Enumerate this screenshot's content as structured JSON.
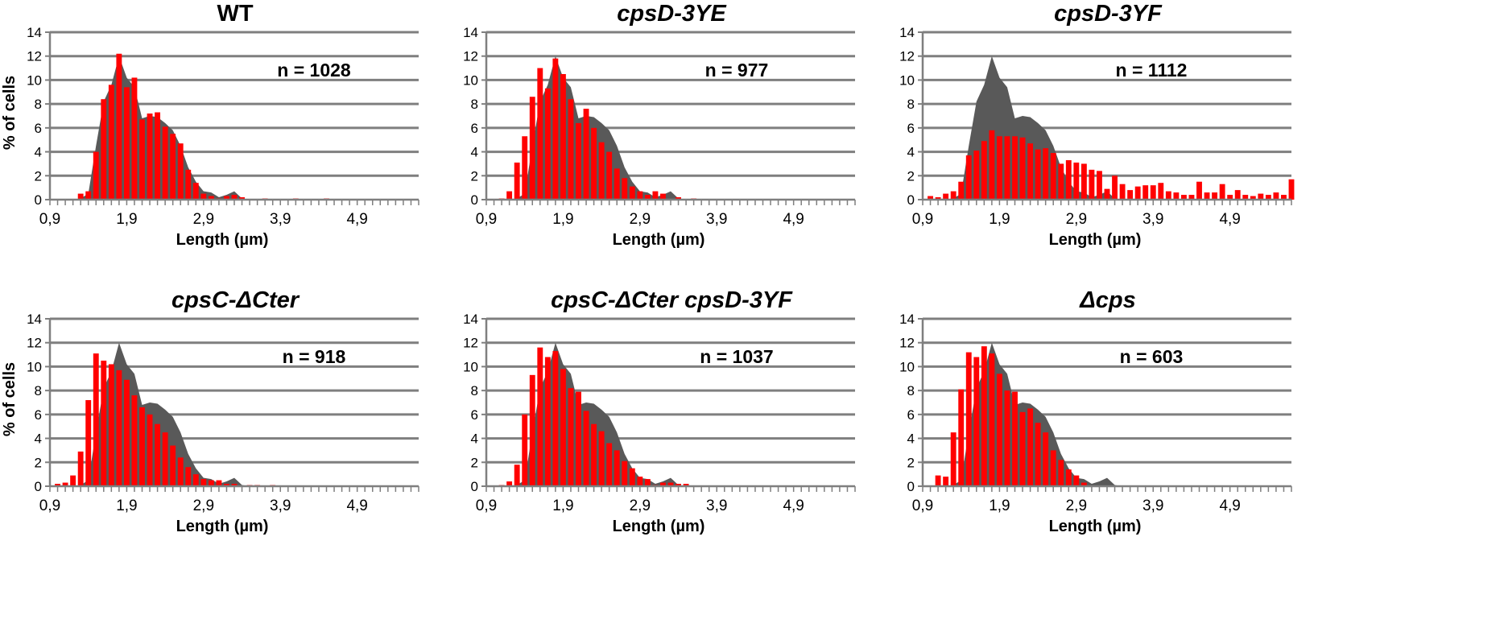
{
  "colors": {
    "wt_area": "#595959",
    "bars": "#ff0000",
    "grid": "#7f7f7f",
    "axis": "#7f7f7f"
  },
  "chart_data": [
    {
      "type": "bar",
      "title": "WT",
      "title_italic": false,
      "annotation": "n = 1028",
      "ylabel": "% of cells",
      "xlabel": "Length (µm)",
      "xlim": [
        0.9,
        5.7
      ],
      "ylim": [
        0,
        14
      ],
      "yticks": [
        "0",
        "2",
        "4",
        "6",
        "8",
        "10",
        "12",
        "14"
      ],
      "xticks": [
        {
          "value": 0.9,
          "label": "0,9"
        },
        {
          "value": 1.9,
          "label": "1,9"
        },
        {
          "value": 2.9,
          "label": "2,9"
        },
        {
          "value": 3.9,
          "label": "3,9"
        },
        {
          "value": 4.9,
          "label": "4,9"
        }
      ],
      "grid": true,
      "reference_area": {
        "x": [
          1.2,
          1.3,
          1.4,
          1.5,
          1.6,
          1.7,
          1.8,
          1.9,
          2.0,
          2.1,
          2.2,
          2.3,
          2.4,
          2.5,
          2.6,
          2.7,
          2.8,
          2.9,
          3.0,
          3.1,
          3.2,
          3.3,
          3.4,
          3.5
        ],
        "values": [
          0,
          0.1,
          0.5,
          4.5,
          8.2,
          9.6,
          12.0,
          10.2,
          9.4,
          6.8,
          7.0,
          6.9,
          6.4,
          5.8,
          4.5,
          2.7,
          1.5,
          0.7,
          0.6,
          0.2,
          0.4,
          0.7,
          0.1,
          0
        ]
      },
      "bars": {
        "x": [
          1.3,
          1.4,
          1.5,
          1.6,
          1.7,
          1.8,
          1.9,
          2.0,
          2.1,
          2.2,
          2.3,
          2.4,
          2.5,
          2.6,
          2.7,
          2.8,
          2.9,
          3.0,
          3.1,
          3.2,
          3.3,
          3.4,
          3.5,
          3.6,
          3.7,
          3.8,
          3.9,
          4.0,
          4.1,
          4.2,
          4.3,
          4.4,
          4.5
        ],
        "values": [
          0.5,
          0.7,
          4.0,
          8.4,
          9.6,
          12.2,
          9.4,
          10.2,
          6.7,
          7.2,
          7.3,
          6.1,
          5.5,
          4.7,
          2.5,
          1.4,
          0.5,
          0.3,
          0.1,
          0.3,
          0.4,
          0.2,
          0,
          0,
          0.1,
          0,
          0,
          0,
          0.1,
          0,
          0,
          0,
          0.1
        ]
      }
    },
    {
      "type": "bar",
      "title": "cpsD-3YE",
      "title_italic": true,
      "annotation": "n = 977",
      "ylabel": "",
      "xlabel": "Length (µm)",
      "xlim": [
        0.9,
        5.7
      ],
      "ylim": [
        0,
        14
      ],
      "yticks": [
        "0",
        "2",
        "4",
        "6",
        "8",
        "10",
        "12",
        "14"
      ],
      "xticks": [
        {
          "value": 0.9,
          "label": "0,9"
        },
        {
          "value": 1.9,
          "label": "1,9"
        },
        {
          "value": 2.9,
          "label": "2,9"
        },
        {
          "value": 3.9,
          "label": "3,9"
        },
        {
          "value": 4.9,
          "label": "4,9"
        }
      ],
      "grid": true,
      "reference_area": {
        "x": [
          1.2,
          1.3,
          1.4,
          1.5,
          1.6,
          1.7,
          1.8,
          1.9,
          2.0,
          2.1,
          2.2,
          2.3,
          2.4,
          2.5,
          2.6,
          2.7,
          2.8,
          2.9,
          3.0,
          3.1,
          3.2,
          3.3,
          3.4,
          3.5
        ],
        "values": [
          0,
          0.1,
          0.5,
          4.5,
          8.2,
          9.6,
          12.0,
          10.2,
          9.4,
          6.8,
          7.0,
          6.9,
          6.4,
          5.8,
          4.5,
          2.7,
          1.5,
          0.7,
          0.6,
          0.2,
          0.4,
          0.7,
          0.1,
          0
        ]
      },
      "bars": {
        "x": [
          1.1,
          1.2,
          1.3,
          1.4,
          1.5,
          1.6,
          1.7,
          1.8,
          1.9,
          2.0,
          2.1,
          2.2,
          2.3,
          2.4,
          2.5,
          2.6,
          2.7,
          2.8,
          2.9,
          3.0,
          3.1,
          3.2,
          3.3,
          3.4,
          3.5,
          3.6
        ],
        "values": [
          0.1,
          0.7,
          3.1,
          5.3,
          8.6,
          11.0,
          9.3,
          11.8,
          10.5,
          8.4,
          6.4,
          7.6,
          6.0,
          4.8,
          4.0,
          2.6,
          1.8,
          1.1,
          0.7,
          0.4,
          0.7,
          0.5,
          0,
          0.2,
          0,
          0.1
        ]
      }
    },
    {
      "type": "bar",
      "title": "cpsD-3YF",
      "title_italic": true,
      "annotation": "n = 1112",
      "ylabel": "",
      "xlabel": "Length (µm)",
      "xlim": [
        0.9,
        5.7
      ],
      "ylim": [
        0,
        14
      ],
      "yticks": [
        "0",
        "2",
        "4",
        "6",
        "8",
        "10",
        "12",
        "14"
      ],
      "xticks": [
        {
          "value": 0.9,
          "label": "0,9"
        },
        {
          "value": 1.9,
          "label": "1,9"
        },
        {
          "value": 2.9,
          "label": "2,9"
        },
        {
          "value": 3.9,
          "label": "3,9"
        },
        {
          "value": 4.9,
          "label": "4,9"
        }
      ],
      "grid": true,
      "reference_area": {
        "x": [
          1.2,
          1.3,
          1.4,
          1.5,
          1.6,
          1.7,
          1.8,
          1.9,
          2.0,
          2.1,
          2.2,
          2.3,
          2.4,
          2.5,
          2.6,
          2.7,
          2.8,
          2.9,
          3.0,
          3.1,
          3.2,
          3.3,
          3.4,
          3.5
        ],
        "values": [
          0,
          0.1,
          0.5,
          4.5,
          8.2,
          9.6,
          12.0,
          10.2,
          9.4,
          6.8,
          7.0,
          6.9,
          6.4,
          5.8,
          4.5,
          2.7,
          1.5,
          0.7,
          0.6,
          0.2,
          0.4,
          0.7,
          0.1,
          0
        ]
      },
      "bars": {
        "x": [
          1.0,
          1.1,
          1.2,
          1.3,
          1.4,
          1.5,
          1.6,
          1.7,
          1.8,
          1.9,
          2.0,
          2.1,
          2.2,
          2.3,
          2.4,
          2.5,
          2.6,
          2.7,
          2.8,
          2.9,
          3.0,
          3.1,
          3.2,
          3.3,
          3.4,
          3.5,
          3.6,
          3.7,
          3.8,
          3.9,
          4.0,
          4.1,
          4.2,
          4.3,
          4.4,
          4.5,
          4.6,
          4.7,
          4.8,
          4.9,
          5.0,
          5.1,
          5.2,
          5.3,
          5.4,
          5.5,
          5.6,
          5.7
        ],
        "values": [
          0.3,
          0.2,
          0.5,
          0.7,
          1.5,
          3.7,
          4.1,
          4.9,
          5.8,
          5.3,
          5.3,
          5.3,
          5.2,
          4.7,
          4.2,
          4.3,
          3.9,
          3.0,
          3.3,
          3.1,
          3.0,
          2.5,
          2.4,
          0.9,
          2.0,
          1.3,
          0.8,
          1.1,
          1.2,
          1.2,
          1.4,
          0.7,
          0.6,
          0.4,
          0.4,
          1.5,
          0.6,
          0.6,
          1.3,
          0.4,
          0.8,
          0.4,
          0.3,
          0.5,
          0.4,
          0.6,
          0.4,
          1.7
        ]
      }
    },
    {
      "type": "bar",
      "title": "cpsC-ΔCter",
      "title_italic": true,
      "annotation": "n = 918",
      "ylabel": "% of cells",
      "xlabel": "Length (µm)",
      "xlim": [
        0.9,
        5.7
      ],
      "ylim": [
        0,
        14
      ],
      "yticks": [
        "0",
        "2",
        "4",
        "6",
        "8",
        "10",
        "12",
        "14"
      ],
      "xticks": [
        {
          "value": 0.9,
          "label": "0,9"
        },
        {
          "value": 1.9,
          "label": "1,9"
        },
        {
          "value": 2.9,
          "label": "2,9"
        },
        {
          "value": 3.9,
          "label": "3,9"
        },
        {
          "value": 4.9,
          "label": "4,9"
        }
      ],
      "grid": true,
      "reference_area": {
        "x": [
          1.2,
          1.3,
          1.4,
          1.5,
          1.6,
          1.7,
          1.8,
          1.9,
          2.0,
          2.1,
          2.2,
          2.3,
          2.4,
          2.5,
          2.6,
          2.7,
          2.8,
          2.9,
          3.0,
          3.1,
          3.2,
          3.3,
          3.4,
          3.5
        ],
        "values": [
          0,
          0.1,
          0.5,
          4.5,
          8.2,
          9.6,
          12.0,
          10.2,
          9.4,
          6.8,
          7.0,
          6.9,
          6.4,
          5.8,
          4.5,
          2.7,
          1.5,
          0.7,
          0.6,
          0.2,
          0.4,
          0.7,
          0.1,
          0
        ]
      },
      "bars": {
        "x": [
          1.0,
          1.1,
          1.2,
          1.3,
          1.4,
          1.5,
          1.6,
          1.7,
          1.8,
          1.9,
          2.0,
          2.1,
          2.2,
          2.3,
          2.4,
          2.5,
          2.6,
          2.7,
          2.8,
          2.9,
          3.0,
          3.1,
          3.2,
          3.3,
          3.4,
          3.5,
          3.6,
          3.7,
          3.8
        ],
        "values": [
          0.2,
          0.3,
          0.9,
          2.9,
          7.2,
          11.1,
          10.5,
          10.2,
          9.7,
          8.9,
          7.6,
          6.6,
          6.0,
          5.2,
          4.5,
          3.4,
          2.4,
          1.6,
          1.0,
          0.6,
          0.5,
          0.5,
          0.2,
          0.2,
          0,
          0.1,
          0.1,
          0,
          0.1
        ]
      }
    },
    {
      "type": "bar",
      "title": "cpsC-ΔCter cpsD-3YF",
      "title_italic": true,
      "annotation": "n = 1037",
      "ylabel": "",
      "xlabel": "Length (µm)",
      "xlim": [
        0.9,
        5.7
      ],
      "ylim": [
        0,
        14
      ],
      "yticks": [
        "0",
        "2",
        "4",
        "6",
        "8",
        "10",
        "12",
        "14"
      ],
      "xticks": [
        {
          "value": 0.9,
          "label": "0,9"
        },
        {
          "value": 1.9,
          "label": "1,9"
        },
        {
          "value": 2.9,
          "label": "2,9"
        },
        {
          "value": 3.9,
          "label": "3,9"
        },
        {
          "value": 4.9,
          "label": "4,9"
        }
      ],
      "grid": true,
      "reference_area": {
        "x": [
          1.2,
          1.3,
          1.4,
          1.5,
          1.6,
          1.7,
          1.8,
          1.9,
          2.0,
          2.1,
          2.2,
          2.3,
          2.4,
          2.5,
          2.6,
          2.7,
          2.8,
          2.9,
          3.0,
          3.1,
          3.2,
          3.3,
          3.4,
          3.5
        ],
        "values": [
          0,
          0.1,
          0.5,
          4.5,
          8.2,
          9.6,
          12.0,
          10.2,
          9.4,
          6.8,
          7.0,
          6.9,
          6.4,
          5.8,
          4.5,
          2.7,
          1.5,
          0.7,
          0.6,
          0.2,
          0.4,
          0.7,
          0.1,
          0
        ]
      },
      "bars": {
        "x": [
          1.1,
          1.2,
          1.3,
          1.4,
          1.5,
          1.6,
          1.7,
          1.8,
          1.9,
          2.0,
          2.1,
          2.2,
          2.3,
          2.4,
          2.5,
          2.6,
          2.7,
          2.8,
          2.9,
          3.0,
          3.1,
          3.2,
          3.3,
          3.4,
          3.5
        ],
        "values": [
          0.1,
          0.4,
          1.8,
          6.0,
          9.3,
          11.6,
          10.8,
          11.3,
          9.8,
          8.2,
          7.9,
          6.3,
          5.2,
          4.6,
          3.6,
          3.0,
          2.1,
          1.5,
          0.8,
          0.6,
          0.1,
          0.3,
          0.3,
          0.2,
          0.2
        ]
      }
    },
    {
      "type": "bar",
      "title": "Δcps",
      "title_italic": true,
      "annotation": "n = 603",
      "ylabel": "",
      "xlabel": "Length (µm)",
      "xlim": [
        0.9,
        5.7
      ],
      "ylim": [
        0,
        14
      ],
      "yticks": [
        "0",
        "2",
        "4",
        "6",
        "8",
        "10",
        "12",
        "14"
      ],
      "xticks": [
        {
          "value": 0.9,
          "label": "0,9"
        },
        {
          "value": 1.9,
          "label": "1,9"
        },
        {
          "value": 2.9,
          "label": "2,9"
        },
        {
          "value": 3.9,
          "label": "3,9"
        },
        {
          "value": 4.9,
          "label": "4,9"
        }
      ],
      "grid": true,
      "reference_area": {
        "x": [
          1.2,
          1.3,
          1.4,
          1.5,
          1.6,
          1.7,
          1.8,
          1.9,
          2.0,
          2.1,
          2.2,
          2.3,
          2.4,
          2.5,
          2.6,
          2.7,
          2.8,
          2.9,
          3.0,
          3.1,
          3.2,
          3.3,
          3.4,
          3.5
        ],
        "values": [
          0,
          0.1,
          0.5,
          4.5,
          8.2,
          9.6,
          12.0,
          10.2,
          9.4,
          6.8,
          7.0,
          6.9,
          6.4,
          5.8,
          4.5,
          2.7,
          1.5,
          0.7,
          0.6,
          0.2,
          0.4,
          0.7,
          0.1,
          0
        ]
      },
      "bars": {
        "x": [
          1.1,
          1.2,
          1.3,
          1.4,
          1.5,
          1.6,
          1.7,
          1.8,
          1.9,
          2.0,
          2.1,
          2.2,
          2.3,
          2.4,
          2.5,
          2.6,
          2.7,
          2.8,
          2.9,
          3.0
        ],
        "values": [
          0.9,
          0.8,
          4.5,
          8.1,
          11.2,
          10.8,
          11.7,
          11.1,
          9.4,
          8.0,
          7.9,
          6.2,
          6.5,
          5.3,
          4.5,
          3.0,
          2.2,
          1.4,
          0.9,
          0.3
        ]
      }
    }
  ]
}
